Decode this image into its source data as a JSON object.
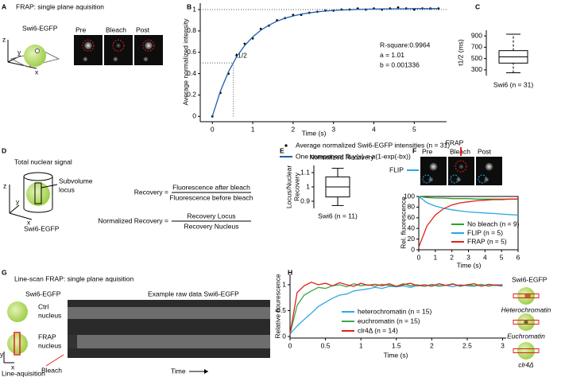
{
  "panels": {
    "A": {
      "letter": "A",
      "title": "FRAP: single plane aquisition",
      "label": "Swi6-EGFP",
      "images": [
        "Pre",
        "Bleach",
        "Post"
      ],
      "axes": [
        "z",
        "y",
        "x"
      ]
    },
    "D": {
      "letter": "D",
      "title": "Total nuclear signal",
      "locus": [
        "Subvolume",
        "locus"
      ],
      "label": "Swi6-EGFP",
      "axes": [
        "z",
        "y",
        "x"
      ],
      "equations": [
        {
          "lhs": "Recovery =",
          "num": "Fluorescence after bleach",
          "den": "Fluorescence before bleach"
        },
        {
          "lhs": "Normalized Recovery =",
          "num": "Recovery Locus",
          "den": "Recovery Nucleus"
        }
      ]
    },
    "F": {
      "images": [
        "Pre",
        "Bleach",
        "Post"
      ],
      "frap": "FRAP",
      "flip": "FLIP"
    },
    "G": {
      "letter": "G",
      "title": "Line-scan FRAP: single plane aquisition",
      "label": "Swi6-EGFP",
      "ctrl": [
        "Ctrl",
        "nucleus"
      ],
      "frap": [
        "FRAP",
        "nucleus"
      ],
      "raw": "Example raw data Swi6-EGFP",
      "time": "Time",
      "acq": "Line-aquisition",
      "bleach": "Bleach",
      "axes": [
        "y",
        "x"
      ]
    },
    "H": {
      "label": "Swi6-EGFP",
      "cartoons": [
        "Heterochromatin",
        "Euchromatin",
        "clr4Δ"
      ]
    }
  },
  "chart_data": [
    {
      "type": "line",
      "panel": "B",
      "ylabel": "Average normalized intensity",
      "xlabel": "Time (s)",
      "xlim": [
        -0.3,
        5.8
      ],
      "ylim": [
        -0.05,
        1.06
      ],
      "xticks": [
        0,
        1,
        2,
        3,
        4,
        5
      ],
      "yticks": [
        0,
        0.2,
        0.4,
        0.6,
        0.8,
        1
      ],
      "hline": 1,
      "half_time": {
        "x": 0.52,
        "y": 0.5,
        "label": "t1/2"
      },
      "annotations": [
        "R-square:0.9964",
        "a = 1.01",
        "b = 0.001336"
      ],
      "legend": "below",
      "x": [
        0,
        0.2,
        0.4,
        0.6,
        0.8,
        1,
        1.2,
        1.4,
        1.6,
        1.8,
        2,
        2.2,
        2.4,
        2.6,
        2.8,
        3,
        3.2,
        3.4,
        3.6,
        3.8,
        4,
        4.2,
        4.4,
        4.6,
        4.8,
        5,
        5.2,
        5.4,
        5.6
      ],
      "series": [
        {
          "name": "Average normalized Swi6-EGFP intensities (n = 31)",
          "color": "#000000",
          "mode": "markers",
          "values": [
            0,
            0.22,
            0.4,
            0.57,
            0.68,
            0.73,
            0.82,
            0.85,
            0.9,
            0.92,
            0.95,
            0.95,
            0.97,
            0.98,
            0.99,
            0.99,
            1.0,
            1.0,
            1.01,
            1.0,
            1.01,
            1.0,
            1.01,
            1.02,
            1.01,
            1.0,
            1.01,
            1.01,
            1.01
          ]
        },
        {
          "name": "One component fit y(x) = a(1-exp(-bx))",
          "color": "#1f5fa8",
          "mode": "line",
          "values": [
            0,
            0.237,
            0.418,
            0.557,
            0.663,
            0.744,
            0.807,
            0.854,
            0.891,
            0.919,
            0.94,
            0.957,
            0.969,
            0.979,
            0.986,
            0.992,
            0.996,
            0.999,
            1.002,
            1.004,
            1.005,
            1.006,
            1.007,
            1.008,
            1.008,
            1.009,
            1.009,
            1.009,
            1.009
          ]
        }
      ]
    },
    {
      "type": "box",
      "panel": "C",
      "ylabel": "t1/2 (ms)",
      "ylim": [
        200,
        1000
      ],
      "yticks": [
        300,
        500,
        700,
        900
      ],
      "categories": [
        "Swi6 (n = 31)"
      ],
      "whisker_style": "dashed",
      "boxes": [
        {
          "whisker_low": 250,
          "q1": 420,
          "median": 530,
          "q3": 640,
          "whisker_high": 930
        }
      ]
    },
    {
      "type": "box",
      "panel": "E",
      "title": "Normalized Recovery",
      "ylabel": [
        "Locus/Nuclear",
        "Recovery"
      ],
      "ylim": [
        0.85,
        1.15
      ],
      "yticks": [
        0.9,
        1,
        1.1
      ],
      "categories": [
        "Swi6 (n = 11)"
      ],
      "whisker_style": "solid",
      "boxes": [
        {
          "whisker_low": 0.87,
          "q1": 0.93,
          "median": 1.0,
          "q3": 1.07,
          "whisker_high": 1.13
        }
      ]
    },
    {
      "type": "line",
      "panel": "F",
      "ylabel": "Rel. fluorescence",
      "xlabel": "Time (s)",
      "frame": true,
      "legend": "lower right",
      "xlim": [
        0,
        6
      ],
      "ylim": [
        0,
        100
      ],
      "xticks": [
        0,
        1,
        2,
        3,
        4,
        5,
        6
      ],
      "yticks": [
        0,
        20,
        40,
        60,
        80,
        100
      ],
      "x": [
        0,
        0.5,
        1,
        1.5,
        2,
        2.5,
        3,
        3.5,
        4,
        4.5,
        5,
        5.5,
        6
      ],
      "series": [
        {
          "name": "No bleach (n = 9)",
          "color": "#2ca02c",
          "mode": "line",
          "values": [
            100,
            98,
            97,
            97,
            96,
            96,
            96,
            95,
            95,
            95,
            95,
            95,
            95
          ]
        },
        {
          "name": "FLIP (n = 5)",
          "color": "#29a8e0",
          "mode": "line",
          "values": [
            100,
            88,
            82,
            78,
            75,
            73,
            71,
            70,
            69,
            68,
            67,
            66,
            65
          ]
        },
        {
          "name": "FRAP (n = 5)",
          "color": "#e0201b",
          "mode": "line",
          "values": [
            5,
            45,
            65,
            77,
            84,
            88,
            90,
            92,
            93,
            94,
            94,
            95,
            95
          ]
        }
      ]
    },
    {
      "type": "line",
      "panel": "H",
      "ylabel": "Relative flourescence",
      "xlabel": "Time (s)",
      "legend": "lower center",
      "xlim": [
        0,
        3.05
      ],
      "ylim": [
        -0.03,
        1.2
      ],
      "xticks": [
        0,
        0.5,
        1,
        1.5,
        2,
        2.5,
        3
      ],
      "yticks": [
        0,
        0.5,
        1
      ],
      "x": [
        0,
        0.1,
        0.2,
        0.3,
        0.4,
        0.5,
        0.6,
        0.7,
        0.8,
        0.9,
        1,
        1.1,
        1.2,
        1.3,
        1.4,
        1.5,
        1.6,
        1.7,
        1.8,
        1.9,
        2,
        2.1,
        2.2,
        2.3,
        2.4,
        2.5,
        2.6,
        2.7,
        2.8,
        2.9,
        3
      ],
      "series": [
        {
          "name": "heterochromatin (n = 15)",
          "color": "#2fa8e0",
          "mode": "line",
          "values": [
            0.05,
            0.2,
            0.33,
            0.45,
            0.58,
            0.66,
            0.74,
            0.8,
            0.82,
            0.88,
            0.9,
            0.92,
            0.95,
            0.93,
            0.97,
            0.96,
            0.98,
            0.95,
            0.99,
            0.97,
            1.0,
            0.97,
            0.99,
            0.96,
            1.0,
            0.98,
            0.97,
            1.0,
            0.98,
            0.99,
            0.97
          ]
        },
        {
          "name": "euchromatin (n = 15)",
          "color": "#3aa84a",
          "mode": "line",
          "values": [
            0.05,
            0.6,
            0.8,
            0.88,
            0.95,
            0.93,
            0.98,
            1.0,
            0.96,
            1.02,
            0.98,
            1.0,
            0.97,
            1.01,
            0.99,
            0.97,
            1.02,
            0.98,
            1.0,
            0.97,
            1.01,
            0.98,
            0.99,
            1.02,
            0.97,
            1.0,
            0.98,
            1.01,
            0.97,
            1.0,
            0.99
          ]
        },
        {
          "name": "clr4Δ (n = 14)",
          "color": "#e0201b",
          "mode": "line",
          "values": [
            0.05,
            0.85,
            0.98,
            1.05,
            1.0,
            1.03,
            0.98,
            1.04,
            1.0,
            0.97,
            1.03,
            0.99,
            1.01,
            0.98,
            1.02,
            0.97,
            1.0,
            1.03,
            0.98,
            1.0,
            0.97,
            1.02,
            0.99,
            1.01,
            0.98,
            1.0,
            1.02,
            0.97,
            1.01,
            0.99,
            1.0
          ]
        }
      ]
    }
  ]
}
